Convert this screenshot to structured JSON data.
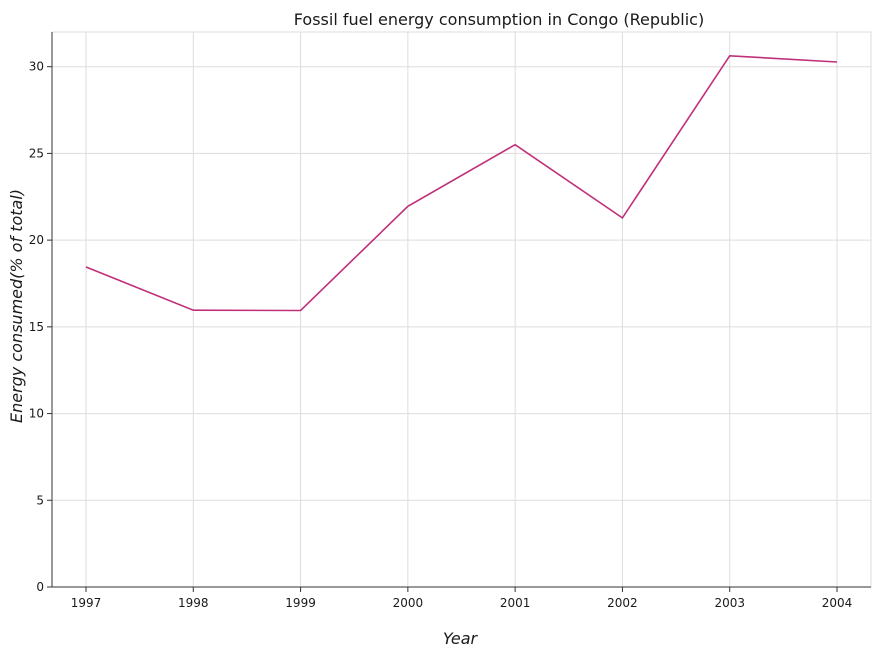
{
  "chart_data": {
    "type": "line",
    "title": "Fossil fuel energy consumption in Congo (Republic)",
    "xlabel": "Year",
    "ylabel": "Energy consumed(% of total)",
    "categories": [
      "1997",
      "1998",
      "1999",
      "2000",
      "2001",
      "2002",
      "2003",
      "2004"
    ],
    "series": [
      {
        "values": [
          18.45,
          15.96,
          15.94,
          21.95,
          25.5,
          21.28,
          30.63,
          30.27
        ],
        "color": "#c0307a"
      }
    ],
    "yticks": [
      0,
      5,
      10,
      15,
      20,
      25,
      30
    ],
    "ytick_labels": [
      "0",
      "5",
      "10",
      "15",
      "20",
      "25",
      "30"
    ],
    "ylim": [
      0,
      32
    ],
    "grid": true,
    "legend": "none"
  }
}
